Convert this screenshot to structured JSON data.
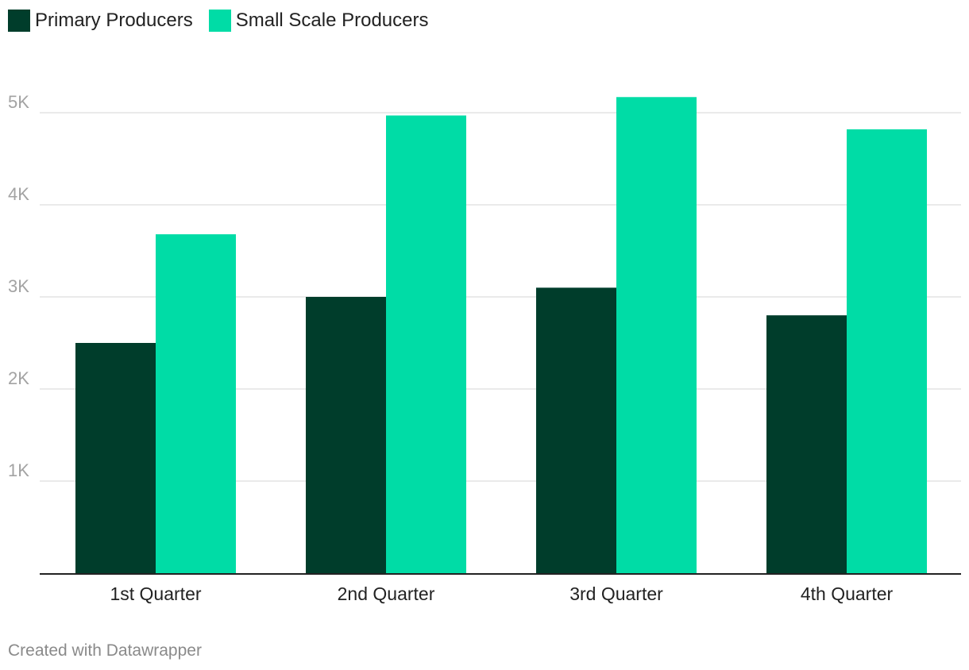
{
  "chart_data": {
    "type": "bar",
    "title": "",
    "xlabel": "",
    "ylabel": "",
    "categories": [
      "1st Quarter",
      "2nd Quarter",
      "3rd Quarter",
      "4th Quarter"
    ],
    "series": [
      {
        "name": "Primary Producers",
        "color": "#003d2b",
        "values": [
          2500,
          3000,
          3100,
          2800
        ]
      },
      {
        "name": "Small Scale Producers",
        "color": "#00dca6",
        "values": [
          3680,
          4970,
          5170,
          4820
        ]
      }
    ],
    "ylim": [
      0,
      5600
    ],
    "yticks": [
      {
        "value": 1000,
        "label": "1K"
      },
      {
        "value": 2000,
        "label": "2K"
      },
      {
        "value": 3000,
        "label": "3K"
      },
      {
        "value": 4000,
        "label": "4K"
      },
      {
        "value": 5000,
        "label": "5K"
      }
    ],
    "grid": true,
    "legend_position": "top-left"
  },
  "credit": "Created with Datawrapper"
}
